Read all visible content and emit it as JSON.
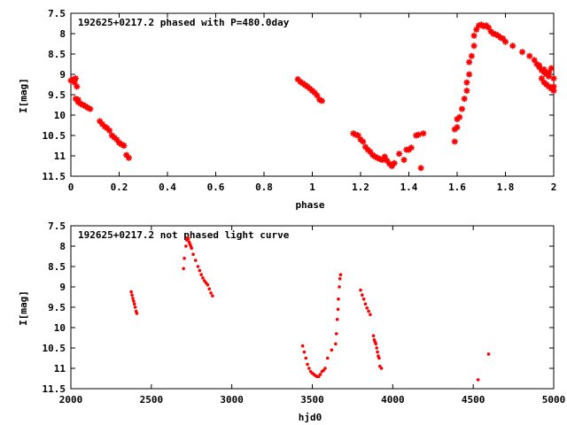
{
  "chart_data": [
    {
      "type": "scatter",
      "title": "192625+0217.2 phased with P=480.0day",
      "xlabel": "phase",
      "ylabel": "I[mag]",
      "xlim": [
        0,
        2
      ],
      "ylim": [
        7.5,
        11.5
      ],
      "y_inverted": true,
      "xticks": [
        0,
        0.2,
        0.4,
        0.6,
        0.8,
        1,
        1.2,
        1.4,
        1.6,
        1.8,
        2
      ],
      "xtick_labels": [
        "0",
        "0.2",
        "0.4",
        "0.6",
        "0.8",
        "1",
        "1.2",
        "1.4",
        "1.6",
        "1.8",
        "2"
      ],
      "yticks": [
        7.5,
        8,
        8.5,
        9,
        9.5,
        10,
        10.5,
        11,
        11.5
      ],
      "ytick_labels": [
        "7.5",
        "8",
        "8.5",
        "9",
        "9.5",
        "10",
        "10.5",
        "11",
        "11.5"
      ],
      "grid": false,
      "marker_color": "#ff0000",
      "marker": "plus",
      "series": [
        {
          "points": [
            [
              0.0,
              9.15
            ],
            [
              0.01,
              9.12
            ],
            [
              0.02,
              9.1
            ],
            [
              0.015,
              9.2
            ],
            [
              0.025,
              9.3
            ],
            [
              0.02,
              9.6
            ],
            [
              0.03,
              9.68
            ],
            [
              0.04,
              9.72
            ],
            [
              0.05,
              9.75
            ],
            [
              0.06,
              9.78
            ],
            [
              0.07,
              9.82
            ],
            [
              0.08,
              9.85
            ],
            [
              0.03,
              9.62
            ],
            [
              0.12,
              10.15
            ],
            [
              0.13,
              10.22
            ],
            [
              0.14,
              10.28
            ],
            [
              0.15,
              10.32
            ],
            [
              0.16,
              10.38
            ],
            [
              0.17,
              10.5
            ],
            [
              0.18,
              10.55
            ],
            [
              0.19,
              10.6
            ],
            [
              0.2,
              10.68
            ],
            [
              0.21,
              10.72
            ],
            [
              0.22,
              10.75
            ],
            [
              0.23,
              10.98
            ],
            [
              0.24,
              11.05
            ],
            [
              0.94,
              9.12
            ],
            [
              0.95,
              9.18
            ],
            [
              0.96,
              9.22
            ],
            [
              0.97,
              9.26
            ],
            [
              0.98,
              9.3
            ],
            [
              0.99,
              9.35
            ],
            [
              1.0,
              9.4
            ],
            [
              1.01,
              9.45
            ],
            [
              1.02,
              9.52
            ],
            [
              1.03,
              9.62
            ],
            [
              1.04,
              9.65
            ],
            [
              1.17,
              10.45
            ],
            [
              1.18,
              10.48
            ],
            [
              1.19,
              10.5
            ],
            [
              1.2,
              10.6
            ],
            [
              1.21,
              10.65
            ],
            [
              1.22,
              10.78
            ],
            [
              1.23,
              10.85
            ],
            [
              1.24,
              10.9
            ],
            [
              1.25,
              10.98
            ],
            [
              1.26,
              11.02
            ],
            [
              1.27,
              11.05
            ],
            [
              1.28,
              11.08
            ],
            [
              1.29,
              11.1
            ],
            [
              1.3,
              11.02
            ],
            [
              1.31,
              11.12
            ],
            [
              1.32,
              11.2
            ],
            [
              1.33,
              11.25
            ],
            [
              1.34,
              11.18
            ],
            [
              1.36,
              10.95
            ],
            [
              1.38,
              11.1
            ],
            [
              1.39,
              10.85
            ],
            [
              1.4,
              10.85
            ],
            [
              1.41,
              10.8
            ],
            [
              1.43,
              10.5
            ],
            [
              1.44,
              10.48
            ],
            [
              1.45,
              11.3
            ],
            [
              1.46,
              10.45
            ],
            [
              1.59,
              10.65
            ],
            [
              1.59,
              10.35
            ],
            [
              1.6,
              10.3
            ],
            [
              1.6,
              10.1
            ],
            [
              1.61,
              10.05
            ],
            [
              1.62,
              9.85
            ],
            [
              1.63,
              9.6
            ],
            [
              1.64,
              9.4
            ],
            [
              1.64,
              9.2
            ],
            [
              1.65,
              9.0
            ],
            [
              1.65,
              8.7
            ],
            [
              1.66,
              8.55
            ],
            [
              1.67,
              8.3
            ],
            [
              1.67,
              8.05
            ],
            [
              1.68,
              7.9
            ],
            [
              1.69,
              7.8
            ],
            [
              1.7,
              7.78
            ],
            [
              1.71,
              7.82
            ],
            [
              1.72,
              7.8
            ],
            [
              1.73,
              7.85
            ],
            [
              1.74,
              7.95
            ],
            [
              1.75,
              8.0
            ],
            [
              1.76,
              8.02
            ],
            [
              1.77,
              8.05
            ],
            [
              1.78,
              8.1
            ],
            [
              1.79,
              8.12
            ],
            [
              1.8,
              8.2
            ],
            [
              1.83,
              8.3
            ],
            [
              1.87,
              8.45
            ],
            [
              1.9,
              8.55
            ],
            [
              1.92,
              8.65
            ],
            [
              1.93,
              8.75
            ],
            [
              1.94,
              8.82
            ],
            [
              1.95,
              8.9
            ],
            [
              1.96,
              8.95
            ],
            [
              1.97,
              9.0
            ],
            [
              1.98,
              9.05
            ],
            [
              1.99,
              8.85
            ],
            [
              2.0,
              9.1
            ],
            [
              1.95,
              9.1
            ],
            [
              1.96,
              9.2
            ],
            [
              1.97,
              9.25
            ],
            [
              1.98,
              9.3
            ],
            [
              1.99,
              9.35
            ],
            [
              2.0,
              9.4
            ],
            [
              1.94,
              8.78
            ],
            [
              1.96,
              8.88
            ],
            [
              1.98,
              8.95
            ],
            [
              2.0,
              9.3
            ]
          ]
        }
      ]
    },
    {
      "type": "scatter",
      "title": "192625+0217.2 not phased light curve",
      "xlabel": "hjd0",
      "ylabel": "I[mag]",
      "xlim": [
        2000,
        5000
      ],
      "ylim": [
        7.5,
        11.5
      ],
      "y_inverted": true,
      "xticks": [
        2000,
        2500,
        3000,
        3500,
        4000,
        4500,
        5000
      ],
      "xtick_labels": [
        "2000",
        "2500",
        "3000",
        "3500",
        "4000",
        "4500",
        "5000"
      ],
      "yticks": [
        7.5,
        8,
        8.5,
        9,
        9.5,
        10,
        10.5,
        11,
        11.5
      ],
      "ytick_labels": [
        "7.5",
        "8",
        "8.5",
        "9",
        "9.5",
        "10",
        "10.5",
        "11",
        "11.5"
      ],
      "grid": false,
      "marker_color": "#ff0000",
      "marker": "dot",
      "series": [
        {
          "points": [
            [
              2375,
              9.12
            ],
            [
              2380,
              9.2
            ],
            [
              2385,
              9.28
            ],
            [
              2390,
              9.35
            ],
            [
              2395,
              9.42
            ],
            [
              2400,
              9.5
            ],
            [
              2405,
              9.6
            ],
            [
              2410,
              9.65
            ],
            [
              2700,
              8.55
            ],
            [
              2705,
              8.3
            ],
            [
              2715,
              8.0
            ],
            [
              2720,
              7.85
            ],
            [
              2725,
              7.8
            ],
            [
              2730,
              7.82
            ],
            [
              2735,
              7.9
            ],
            [
              2740,
              7.95
            ],
            [
              2745,
              8.0
            ],
            [
              2750,
              8.05
            ],
            [
              2760,
              8.2
            ],
            [
              2775,
              8.35
            ],
            [
              2790,
              8.5
            ],
            [
              2800,
              8.6
            ],
            [
              2810,
              8.7
            ],
            [
              2820,
              8.78
            ],
            [
              2830,
              8.85
            ],
            [
              2840,
              8.9
            ],
            [
              2850,
              8.95
            ],
            [
              2860,
              9.05
            ],
            [
              2870,
              9.15
            ],
            [
              2880,
              9.22
            ],
            [
              3440,
              10.45
            ],
            [
              3450,
              10.6
            ],
            [
              3460,
              10.75
            ],
            [
              3470,
              10.9
            ],
            [
              3480,
              11.0
            ],
            [
              3490,
              11.08
            ],
            [
              3500,
              11.12
            ],
            [
              3510,
              11.15
            ],
            [
              3520,
              11.18
            ],
            [
              3530,
              11.2
            ],
            [
              3540,
              11.2
            ],
            [
              3550,
              11.15
            ],
            [
              3560,
              11.08
            ],
            [
              3570,
              11.05
            ],
            [
              3580,
              11.0
            ],
            [
              3595,
              10.75
            ],
            [
              3620,
              10.55
            ],
            [
              3645,
              10.4
            ],
            [
              3650,
              10.15
            ],
            [
              3655,
              9.8
            ],
            [
              3660,
              9.55
            ],
            [
              3662,
              9.3
            ],
            [
              3668,
              9.0
            ],
            [
              3672,
              8.8
            ],
            [
              3676,
              8.7
            ],
            [
              3800,
              9.08
            ],
            [
              3810,
              9.2
            ],
            [
              3820,
              9.3
            ],
            [
              3830,
              9.42
            ],
            [
              3840,
              9.52
            ],
            [
              3850,
              9.6
            ],
            [
              3860,
              9.68
            ],
            [
              3880,
              10.2
            ],
            [
              3885,
              10.3
            ],
            [
              3890,
              10.35
            ],
            [
              3895,
              10.4
            ],
            [
              3900,
              10.5
            ],
            [
              3905,
              10.6
            ],
            [
              3910,
              10.7
            ],
            [
              3915,
              10.75
            ],
            [
              3920,
              10.95
            ],
            [
              3930,
              11.0
            ],
            [
              4530,
              11.28
            ],
            [
              4595,
              10.65
            ]
          ]
        }
      ]
    }
  ]
}
